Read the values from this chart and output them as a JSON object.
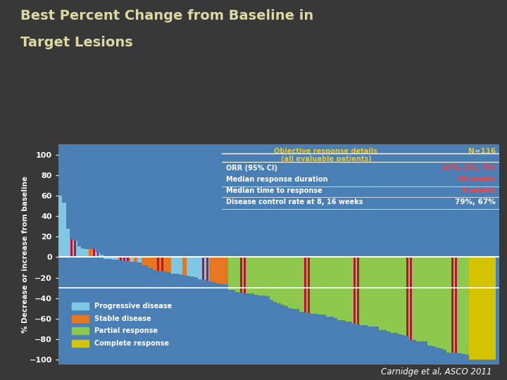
{
  "title_line1": "Best Percent Change from Baseline in",
  "title_line2": "Target Lesions",
  "ylabel": "% Decrease or increase from baseline",
  "bg_color": "#383838",
  "chart_bg": "#4a7fb5",
  "title_color": "#ddd8a0",
  "axis_label_color": "#ffffff",
  "tick_color": "#ffffff",
  "legend_labels": [
    "Progressive disease",
    "Stable disease",
    "Partial response",
    "Complete response"
  ],
  "legend_colors": [
    "#7ec8e3",
    "#e87722",
    "#8cc84b",
    "#d4c400"
  ],
  "table_header_label": "Objective response details\n(all evaluable patients)",
  "table_header_color": "#e8c830",
  "table_n_label": "N=116",
  "table_n_color": "#e8c830",
  "table_rows": [
    {
      "label": "ORR (95% CI)",
      "value": "61% (52, 70)",
      "value_color": "#ff4040"
    },
    {
      "label": "Median response duration",
      "value": "48 weeks",
      "value_color": "#ff4040"
    },
    {
      "label": "Median time to response",
      "value": "8 weeks",
      "value_color": "#ff4040"
    },
    {
      "label": "Disease control rate at 8, 16 weeks",
      "value": "79%, 67%",
      "value_color": "#ffffff"
    }
  ],
  "table_label_color": "#ffffff",
  "footnote": "Carnidge et al, ASCO 2011",
  "ylim": [
    -105,
    110
  ],
  "yticks": [
    -100,
    -80,
    -60,
    -40,
    -20,
    0,
    20,
    40,
    60,
    80,
    100
  ],
  "crimson_color": "#c0103a",
  "hline_color": "#ffffff",
  "n_patients": 116,
  "n_complete": 7,
  "n_partial": 64,
  "n_stable": 18,
  "n_progressive": 27,
  "seed": 15
}
